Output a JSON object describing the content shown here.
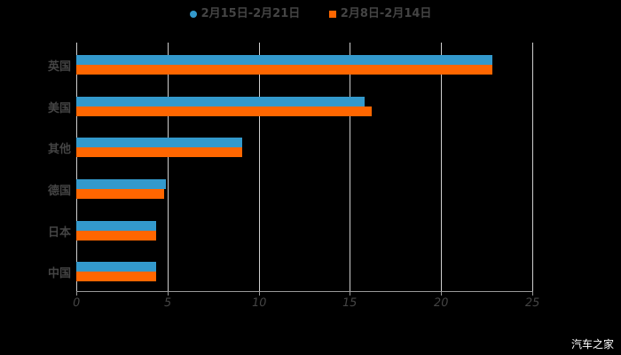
{
  "chart_data": {
    "type": "bar",
    "orientation": "horizontal",
    "title": "",
    "xlabel": "",
    "ylabel": "",
    "xlim": [
      0,
      25
    ],
    "xticks": [
      "0",
      "5",
      "10",
      "15",
      "20",
      "25"
    ],
    "grid": true,
    "legend_position": "top",
    "categories": [
      "英国",
      "美国",
      "其他",
      "德国",
      "日本",
      "中国"
    ],
    "series": [
      {
        "name": "2月15日-2月21日",
        "color": "#3399cc",
        "values": [
          22.8,
          15.8,
          9.1,
          4.9,
          4.4,
          4.4
        ]
      },
      {
        "name": "2月8日-2月14日",
        "color": "#ff6600",
        "values": [
          22.8,
          16.2,
          9.1,
          4.8,
          4.4,
          4.4
        ]
      }
    ]
  },
  "legend": {
    "series1": "2月15日-2月21日",
    "series2": "2月8日-2月14日"
  },
  "watermark": "汽车之家"
}
